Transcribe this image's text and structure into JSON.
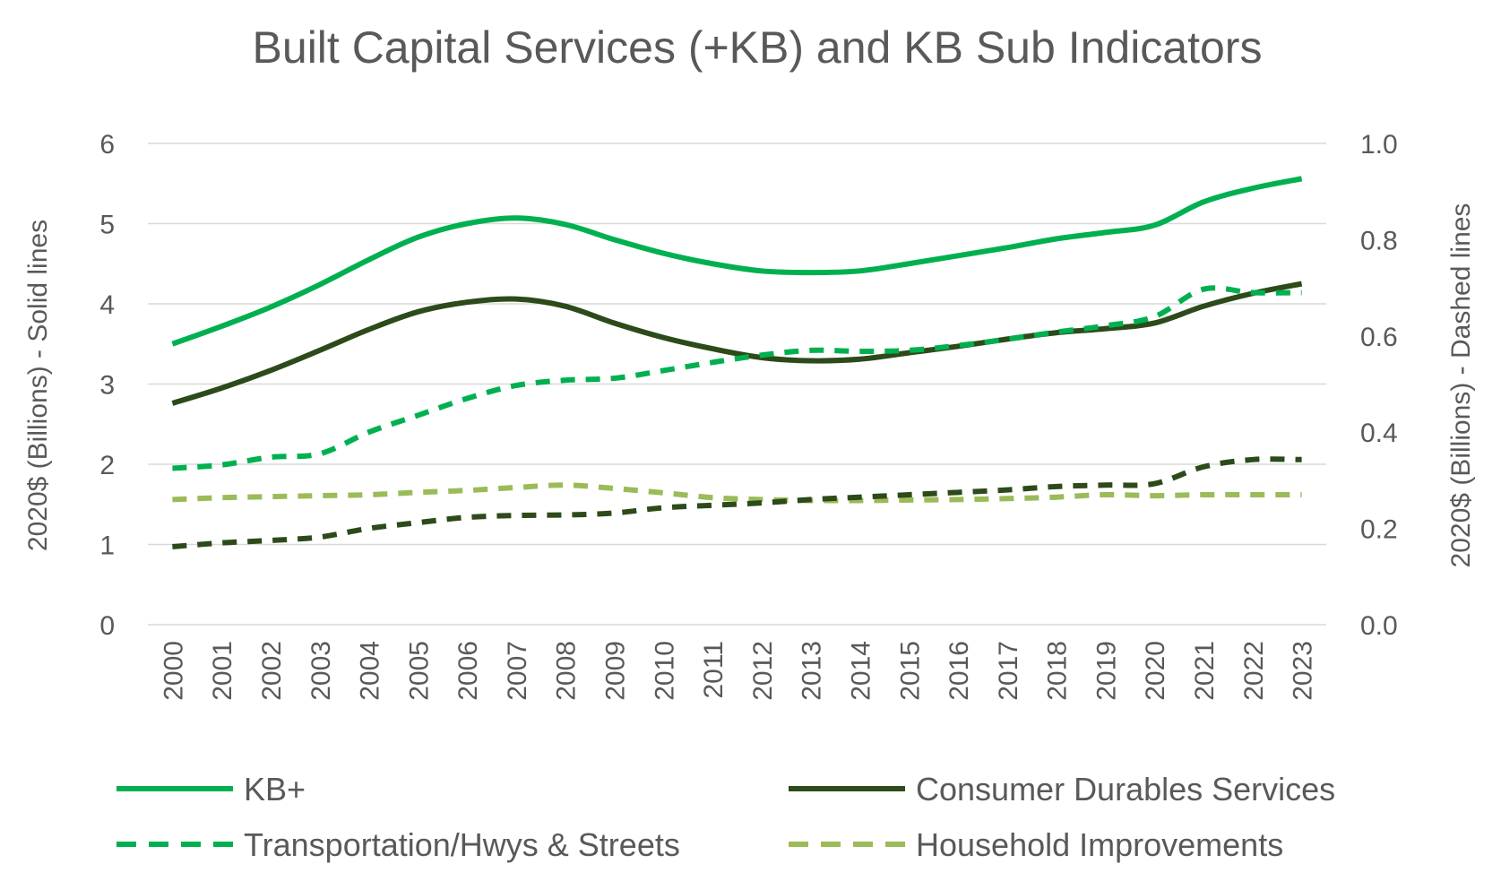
{
  "chart_data": {
    "type": "line",
    "title": "Built Capital Services (+KB) and KB Sub Indicators",
    "x": [
      2000,
      2001,
      2002,
      2003,
      2004,
      2005,
      2006,
      2007,
      2008,
      2009,
      2010,
      2011,
      2012,
      2013,
      2014,
      2015,
      2016,
      2017,
      2018,
      2019,
      2020,
      2021,
      2022,
      2023
    ],
    "y_left": {
      "label": "2020$ (Billions) - Solid lines",
      "range": [
        0,
        6
      ],
      "ticks": [
        "0",
        "1",
        "2",
        "3",
        "4",
        "5",
        "6"
      ]
    },
    "y_right": {
      "label": "2020$ (Billions) - Dashed lines",
      "range": [
        0,
        1.0
      ],
      "ticks": [
        "0.0",
        "0.2",
        "0.4",
        "0.6",
        "0.8",
        "1.0"
      ]
    },
    "grid": true,
    "legend_position": "bottom",
    "series": [
      {
        "name": "KB+",
        "axis": "left",
        "style": "solid",
        "color": "#00b050",
        "values": [
          3.5,
          3.72,
          3.96,
          4.24,
          4.55,
          4.83,
          5.0,
          5.07,
          4.99,
          4.8,
          4.63,
          4.5,
          4.41,
          4.39,
          4.41,
          4.5,
          4.6,
          4.7,
          4.81,
          4.89,
          4.98,
          5.27,
          5.44,
          5.56
        ]
      },
      {
        "name": "Consumer Durables Services",
        "axis": "left",
        "style": "solid",
        "color": "#2d4a1a",
        "values": [
          2.76,
          2.95,
          3.17,
          3.42,
          3.68,
          3.9,
          4.02,
          4.06,
          3.97,
          3.76,
          3.58,
          3.44,
          3.33,
          3.29,
          3.31,
          3.39,
          3.47,
          3.56,
          3.64,
          3.69,
          3.76,
          3.97,
          4.13,
          4.25
        ]
      },
      {
        "name": "Transportation/Hwys & Streets",
        "axis": "right",
        "style": "dashed",
        "color": "#00b050",
        "values": [
          0.325,
          0.332,
          0.348,
          0.355,
          0.4,
          0.435,
          0.47,
          0.497,
          0.508,
          0.512,
          0.528,
          0.545,
          0.56,
          0.57,
          0.568,
          0.57,
          0.58,
          0.593,
          0.608,
          0.621,
          0.64,
          0.697,
          0.69,
          0.69
        ]
      },
      {
        "name": "Household Improvements",
        "axis": "right",
        "style": "dashed",
        "color": "#9bbb59",
        "values": [
          0.26,
          0.264,
          0.266,
          0.268,
          0.27,
          0.275,
          0.279,
          0.285,
          0.29,
          0.283,
          0.274,
          0.264,
          0.26,
          0.258,
          0.258,
          0.259,
          0.26,
          0.262,
          0.265,
          0.27,
          0.268,
          0.27,
          0.27,
          0.27
        ]
      },
      {
        "name": "",
        "axis": "right",
        "style": "dashed",
        "color": "#2d4a1a",
        "values": [
          0.162,
          0.17,
          0.175,
          0.182,
          0.2,
          0.212,
          0.223,
          0.227,
          0.228,
          0.232,
          0.243,
          0.248,
          0.253,
          0.26,
          0.265,
          0.27,
          0.275,
          0.28,
          0.287,
          0.29,
          0.293,
          0.328,
          0.343,
          0.343
        ]
      }
    ],
    "legend": [
      {
        "series": 0,
        "label": "KB+"
      },
      {
        "series": 1,
        "label": "Consumer Durables Services"
      },
      {
        "series": 2,
        "label": "Transportation/Hwys & Streets"
      },
      {
        "series": 3,
        "label": "Household Improvements"
      }
    ]
  }
}
